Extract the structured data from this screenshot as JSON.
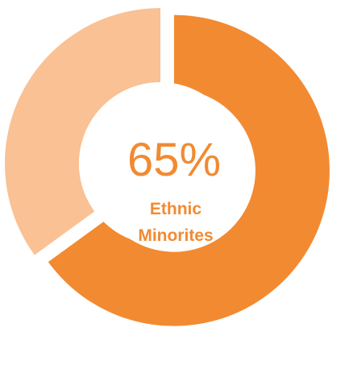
{
  "chart_data": {
    "type": "pie",
    "variant": "donut",
    "slices": [
      {
        "value": 65,
        "color": "#f28a31",
        "exploded": true
      },
      {
        "value": 35,
        "color": "#f9c194",
        "exploded": false
      }
    ],
    "center": {
      "value_text": "65%",
      "label_line1": "Ethnic",
      "label_line2": "Minorites",
      "text_color": "#f28a31"
    }
  }
}
